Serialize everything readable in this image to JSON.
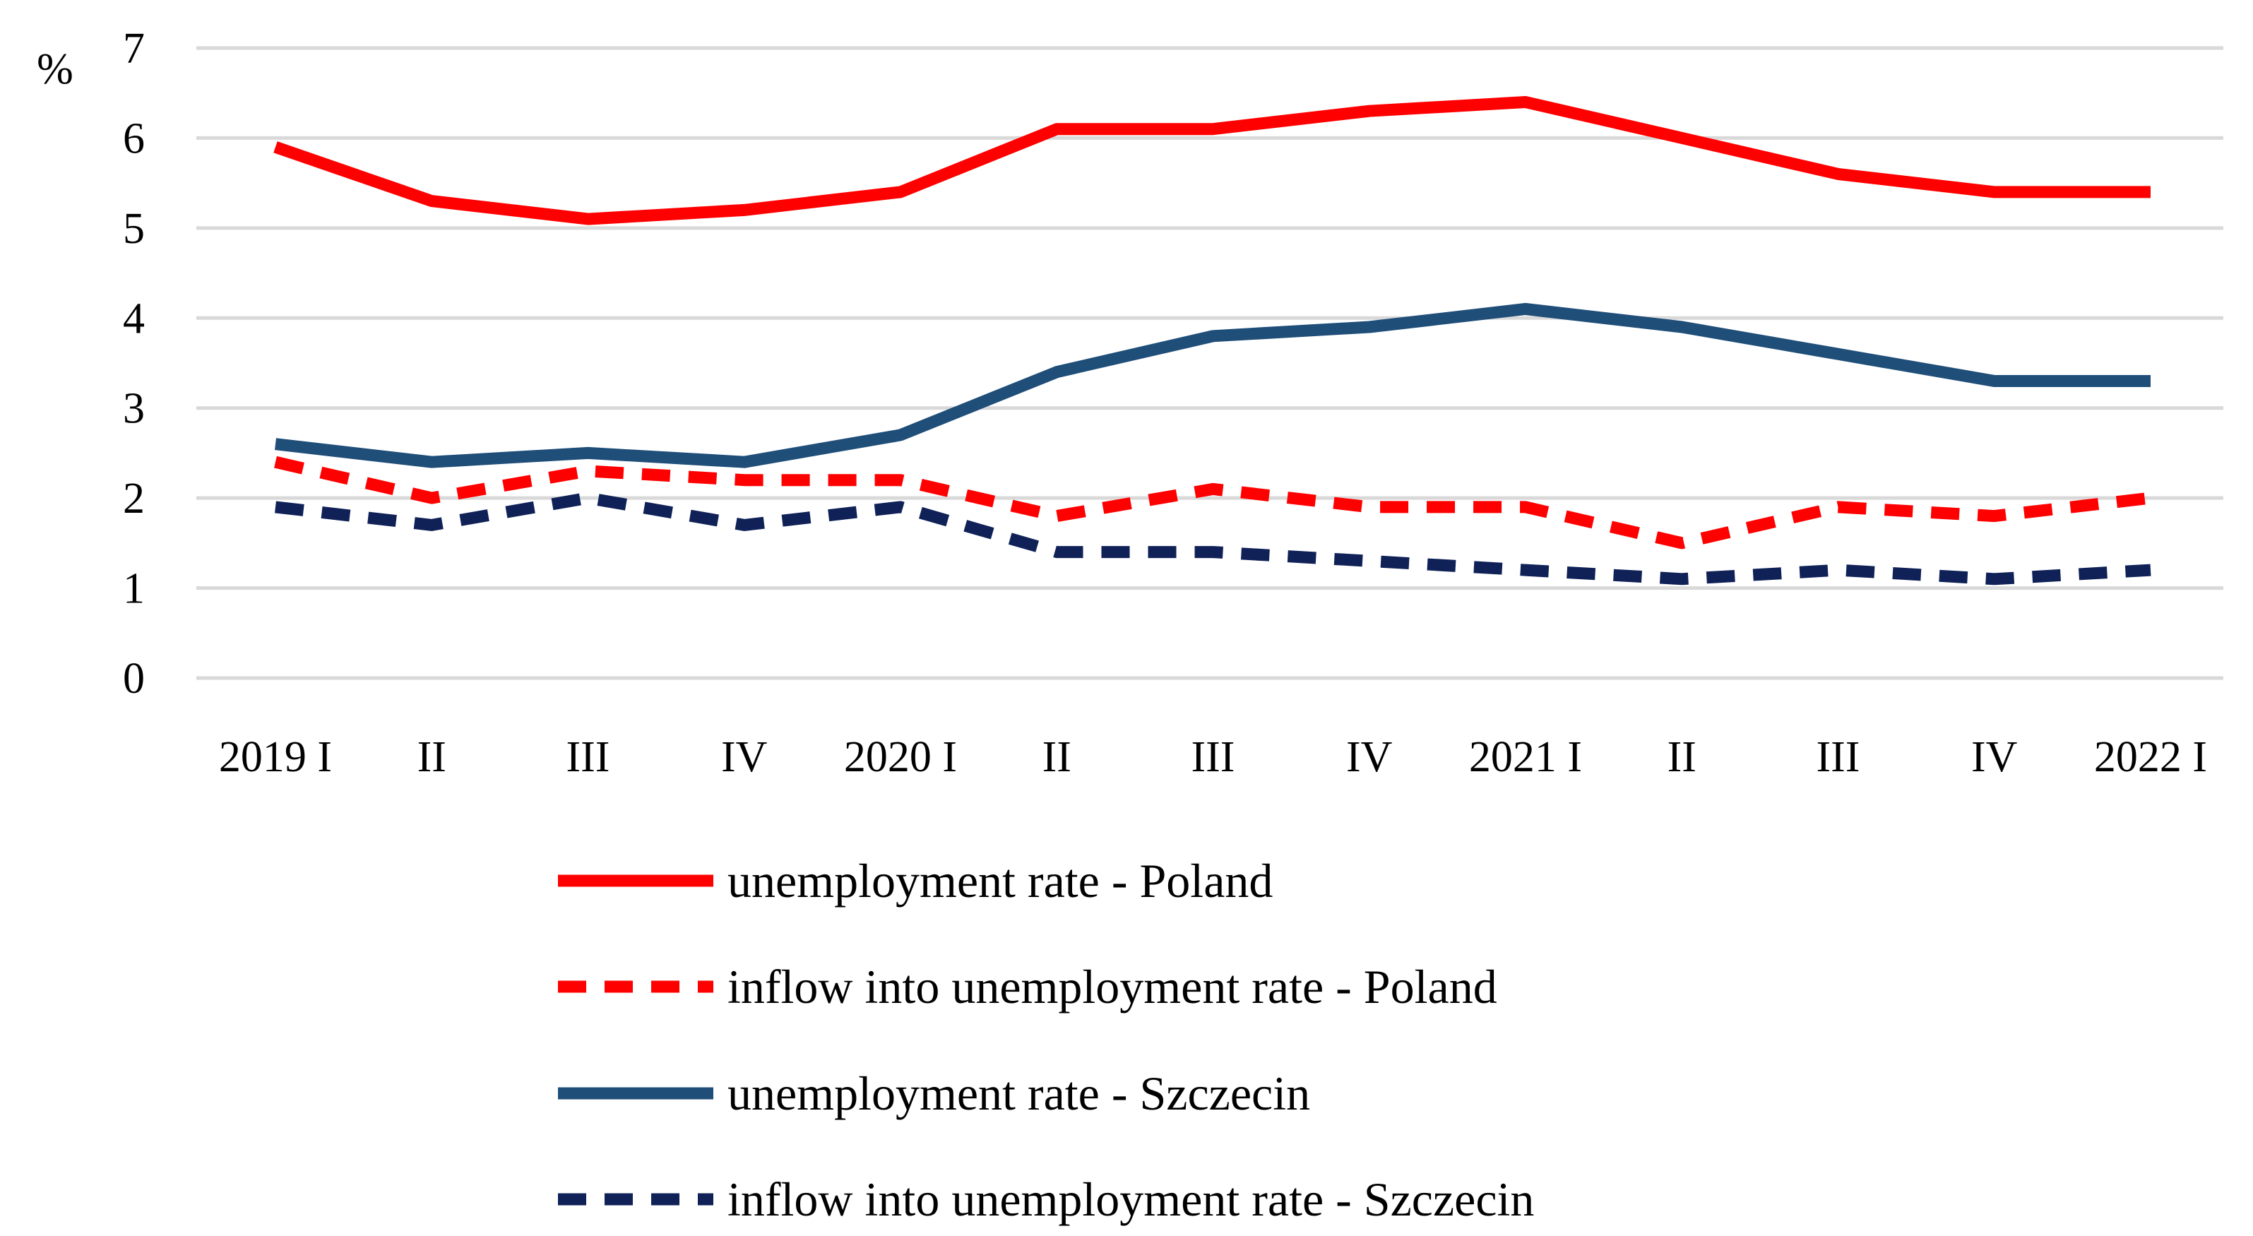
{
  "chart_data": {
    "type": "line",
    "title": "",
    "xlabel": "",
    "ylabel": "%",
    "ylim": [
      0,
      7
    ],
    "yticks": [
      0,
      1,
      2,
      3,
      4,
      5,
      6,
      7
    ],
    "grid": true,
    "legend_position": "bottom",
    "categories": [
      "2019 I",
      "II",
      "III",
      "IV",
      "2020 I",
      "II",
      "III",
      "IV",
      "2021 I",
      "II",
      "III",
      "IV",
      "2022 I"
    ],
    "series": [
      {
        "name": "unemployment rate - Poland",
        "color": "#FF0000",
        "style": "solid",
        "values": [
          5.9,
          5.3,
          5.1,
          5.2,
          5.4,
          6.1,
          6.1,
          6.3,
          6.4,
          6.0,
          5.6,
          5.4,
          5.4
        ]
      },
      {
        "name": "inflow into unemployment rate - Poland",
        "color": "#FF0000",
        "style": "dashed",
        "values": [
          2.4,
          2.0,
          2.3,
          2.2,
          2.2,
          1.8,
          2.1,
          1.9,
          1.9,
          1.5,
          1.9,
          1.8,
          2.0
        ]
      },
      {
        "name": "unemployment rate - Szczecin",
        "color": "#1F4E79",
        "style": "solid",
        "values": [
          2.6,
          2.4,
          2.5,
          2.4,
          2.7,
          3.4,
          3.8,
          3.9,
          4.1,
          3.9,
          3.6,
          3.3,
          3.3
        ]
      },
      {
        "name": "inflow into unemployment rate - Szczecin",
        "color": "#0F2157",
        "style": "dashed",
        "values": [
          1.9,
          1.7,
          2.0,
          1.7,
          1.9,
          1.4,
          1.4,
          1.3,
          1.2,
          1.1,
          1.2,
          1.1,
          1.2
        ]
      }
    ]
  }
}
